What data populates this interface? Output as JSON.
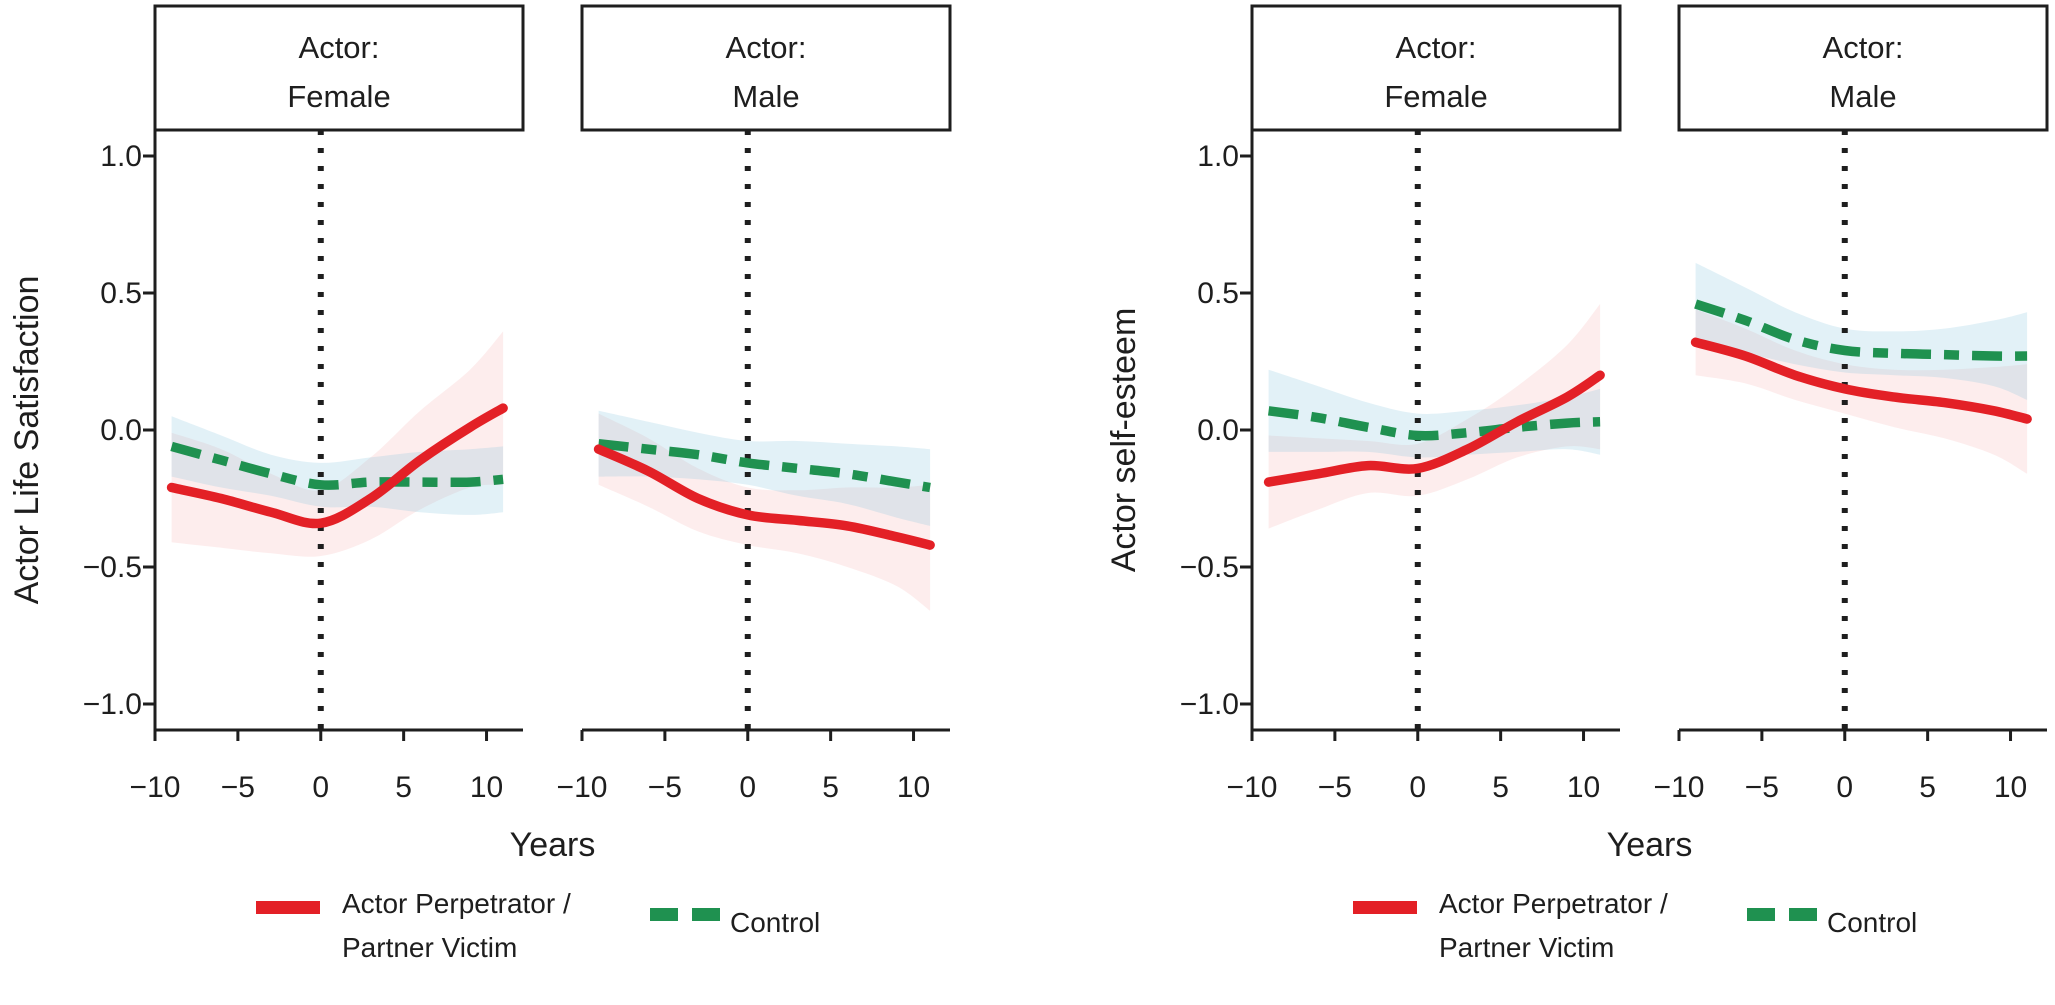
{
  "figure": {
    "background": "#ffffff",
    "text_color": "#1e1e1e",
    "axis_color": "#1e1e1e",
    "reference_line_color": "#1e1e1e",
    "series_colors": {
      "perpetrator": "#e32026",
      "control": "#1f9150"
    },
    "band_colors": {
      "perpetrator": "rgba(232,78,78,0.10)",
      "control": "rgba(125,192,218,0.22)"
    },
    "x_axis_label": "Years",
    "x_ticks": {
      "values": [
        -10,
        -5,
        0,
        5,
        10
      ],
      "labels": [
        "−10",
        "−5",
        "0",
        "5",
        "10"
      ]
    },
    "y_ticks": {
      "values": [
        1.0,
        0.5,
        0.0,
        -0.5,
        -1.0
      ],
      "labels": [
        "1.0",
        "0.5",
        "0.0",
        "−0.5",
        "−1.0"
      ]
    },
    "legend": [
      {
        "id": "perpetrator",
        "label_lines": [
          "Actor Perpetrator /",
          "Partner Victim"
        ],
        "style": "solid"
      },
      {
        "id": "control",
        "label_lines": [
          "Control"
        ],
        "style": "dashed"
      }
    ]
  },
  "chart_data": [
    {
      "type": "line",
      "title": "",
      "ylabel": "Actor Life Satisfaction",
      "xlabel": "Years",
      "xlim": [
        -10,
        12.2
      ],
      "ylim": [
        -1.1,
        1.1
      ],
      "grid": false,
      "legend_position": "bottom",
      "x": [
        -9,
        -6,
        -3,
        0,
        3,
        6,
        9,
        11
      ],
      "facets": [
        {
          "label_lines": [
            "Actor:",
            "Female"
          ],
          "vline_x": 0,
          "series": [
            {
              "id": "perpetrator",
              "name": "Actor Perpetrator / Partner Victim",
              "y": [
                -0.21,
                -0.25,
                -0.3,
                -0.34,
                -0.25,
                -0.11,
                0.01,
                0.08
              ],
              "upper": [
                -0.01,
                -0.07,
                -0.16,
                -0.22,
                -0.1,
                0.07,
                0.22,
                0.36
              ],
              "lower": [
                -0.41,
                -0.43,
                -0.45,
                -0.46,
                -0.4,
                -0.29,
                -0.21,
                -0.2
              ]
            },
            {
              "id": "control",
              "name": "Control",
              "y": [
                -0.06,
                -0.11,
                -0.16,
                -0.2,
                -0.19,
                -0.19,
                -0.19,
                -0.18
              ],
              "upper": [
                0.05,
                -0.02,
                -0.09,
                -0.12,
                -0.1,
                -0.08,
                -0.07,
                -0.06
              ],
              "lower": [
                -0.17,
                -0.21,
                -0.24,
                -0.28,
                -0.28,
                -0.3,
                -0.31,
                -0.3
              ]
            }
          ]
        },
        {
          "label_lines": [
            "Actor:",
            "Male"
          ],
          "vline_x": 0,
          "series": [
            {
              "id": "perpetrator",
              "name": "Actor Perpetrator / Partner Victim",
              "y": [
                -0.07,
                -0.15,
                -0.25,
                -0.31,
                -0.33,
                -0.35,
                -0.39,
                -0.42
              ],
              "upper": [
                0.06,
                -0.03,
                -0.14,
                -0.21,
                -0.22,
                -0.21,
                -0.21,
                -0.2
              ],
              "lower": [
                -0.2,
                -0.28,
                -0.37,
                -0.42,
                -0.45,
                -0.5,
                -0.57,
                -0.66
              ]
            },
            {
              "id": "control",
              "name": "Control",
              "y": [
                -0.05,
                -0.07,
                -0.09,
                -0.12,
                -0.14,
                -0.16,
                -0.19,
                -0.21
              ],
              "upper": [
                0.07,
                0.03,
                -0.01,
                -0.04,
                -0.04,
                -0.05,
                -0.06,
                -0.07
              ],
              "lower": [
                -0.17,
                -0.17,
                -0.18,
                -0.2,
                -0.24,
                -0.27,
                -0.32,
                -0.35
              ]
            }
          ]
        }
      ]
    },
    {
      "type": "line",
      "title": "",
      "ylabel": "Actor self-esteem",
      "xlabel": "Years",
      "xlim": [
        -10,
        12.2
      ],
      "ylim": [
        -1.1,
        1.1
      ],
      "grid": false,
      "legend_position": "bottom",
      "x": [
        -9,
        -6,
        -3,
        0,
        3,
        6,
        9,
        11
      ],
      "facets": [
        {
          "label_lines": [
            "Actor:",
            "Female"
          ],
          "vline_x": 0,
          "series": [
            {
              "id": "perpetrator",
              "name": "Actor Perpetrator / Partner Victim",
              "y": [
                -0.19,
                -0.16,
                -0.13,
                -0.14,
                -0.07,
                0.03,
                0.12,
                0.2
              ],
              "upper": [
                -0.02,
                -0.03,
                -0.04,
                -0.05,
                0.04,
                0.16,
                0.31,
                0.46
              ],
              "lower": [
                -0.36,
                -0.29,
                -0.23,
                -0.24,
                -0.18,
                -0.1,
                -0.06,
                -0.07
              ]
            },
            {
              "id": "control",
              "name": "Control",
              "y": [
                0.07,
                0.045,
                0.01,
                -0.02,
                -0.01,
                0.01,
                0.025,
                0.03
              ],
              "upper": [
                0.22,
                0.16,
                0.1,
                0.06,
                0.07,
                0.09,
                0.12,
                0.15
              ],
              "lower": [
                -0.08,
                -0.08,
                -0.08,
                -0.1,
                -0.09,
                -0.08,
                -0.07,
                -0.09
              ]
            }
          ]
        },
        {
          "label_lines": [
            "Actor:",
            "Male"
          ],
          "vline_x": 0,
          "series": [
            {
              "id": "perpetrator",
              "name": "Actor Perpetrator / Partner Victim",
              "y": [
                0.32,
                0.27,
                0.2,
                0.15,
                0.12,
                0.1,
                0.07,
                0.04
              ],
              "upper": [
                0.44,
                0.37,
                0.29,
                0.24,
                0.22,
                0.22,
                0.23,
                0.24
              ],
              "lower": [
                0.2,
                0.17,
                0.11,
                0.06,
                0.01,
                -0.03,
                -0.09,
                -0.16
              ]
            },
            {
              "id": "control",
              "name": "Control",
              "y": [
                0.46,
                0.4,
                0.33,
                0.29,
                0.28,
                0.275,
                0.27,
                0.27
              ],
              "upper": [
                0.61,
                0.52,
                0.43,
                0.37,
                0.36,
                0.37,
                0.4,
                0.43
              ],
              "lower": [
                0.31,
                0.28,
                0.24,
                0.21,
                0.2,
                0.19,
                0.16,
                0.11
              ]
            }
          ]
        }
      ]
    }
  ]
}
